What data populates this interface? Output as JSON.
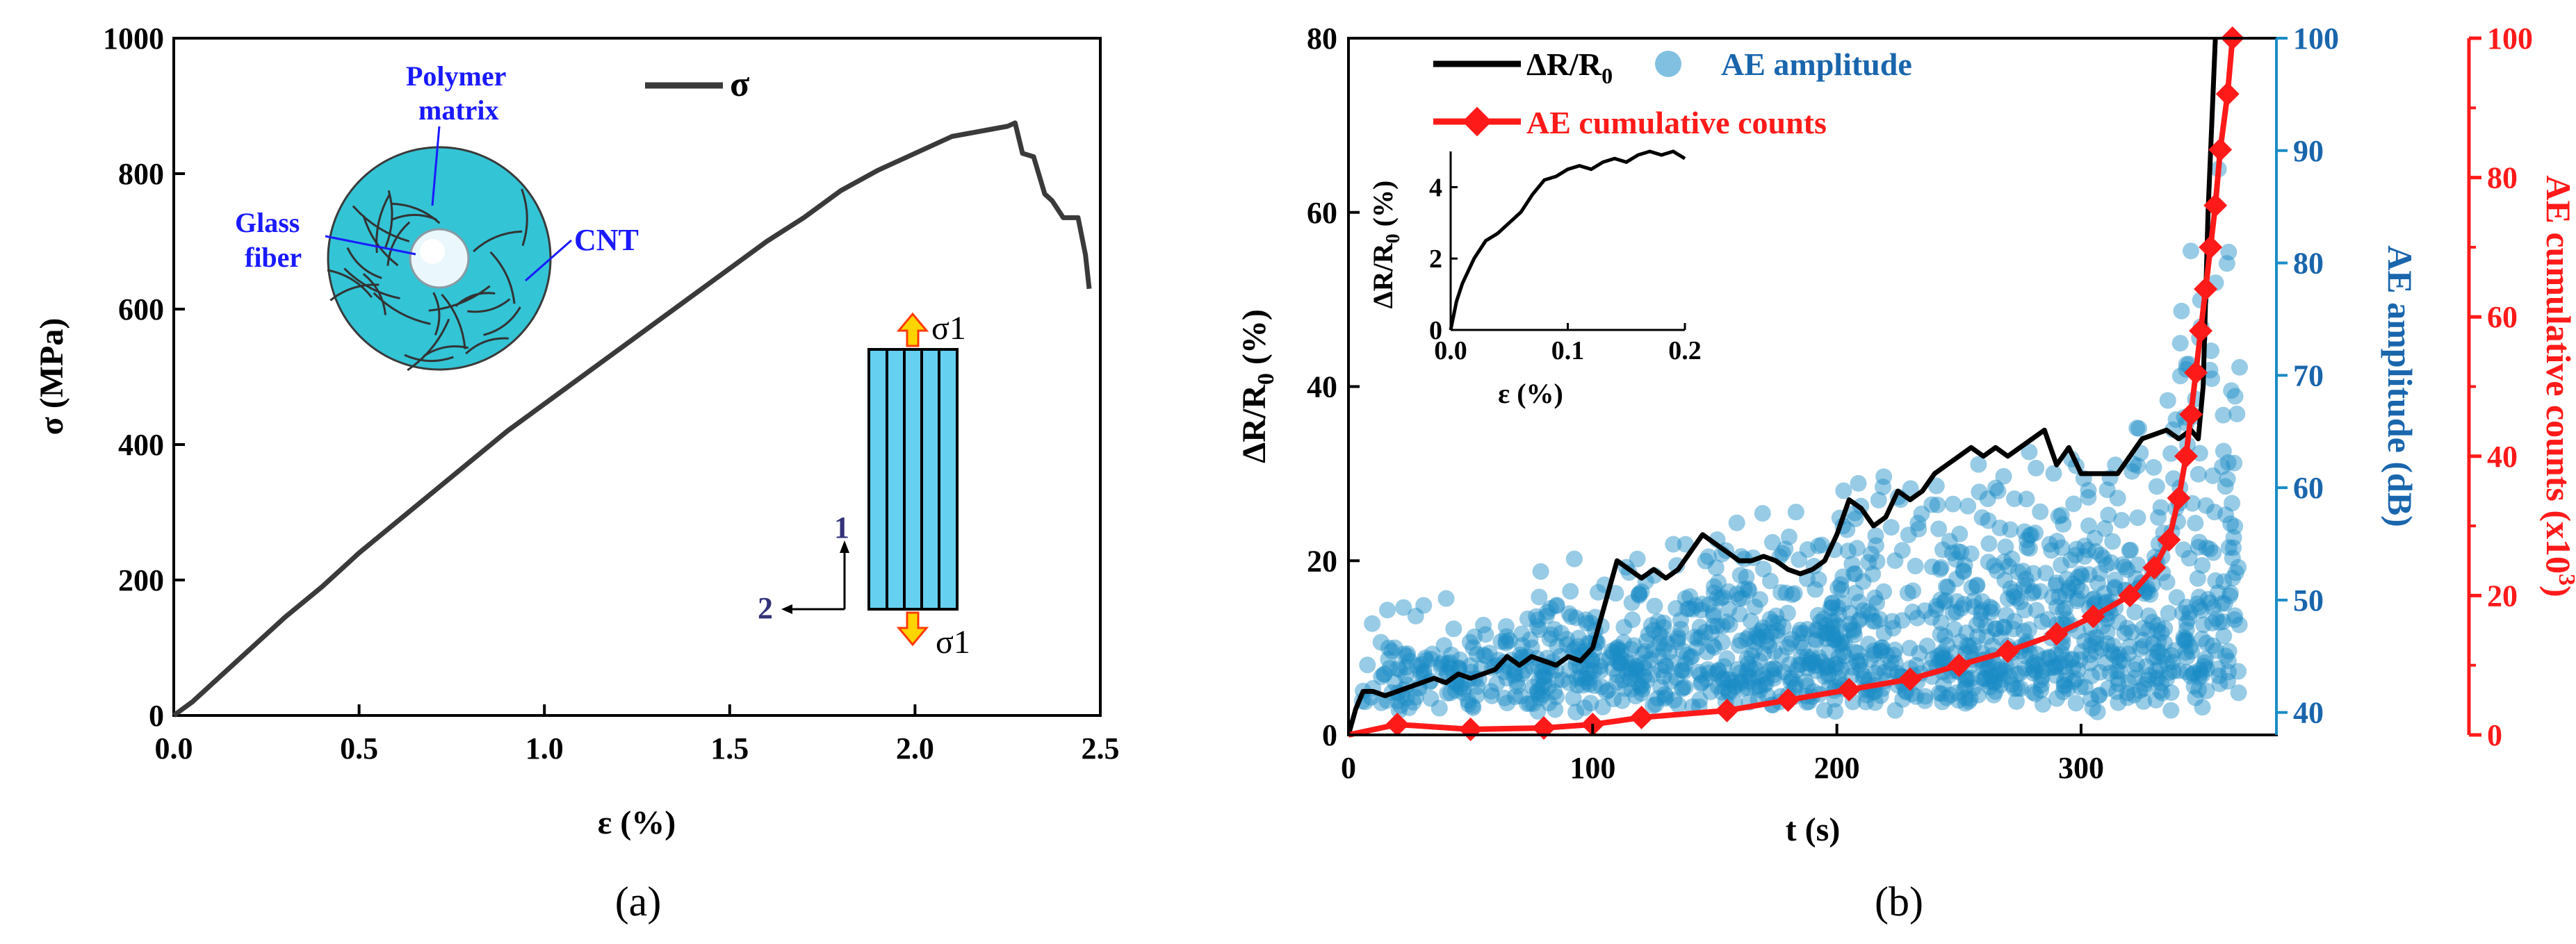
{
  "colors": {
    "stress": "#3a3a3a",
    "resistance": "#000000",
    "ae_amplitude": "#1a8cc6",
    "ae_counts": "#ff1a1a",
    "fiber_fill": "#33c4d6",
    "rod_fill": "#66d0f0",
    "arrow_fill": "#ffd400",
    "arrow_edge": "#ff3b00",
    "schematic_label": "#1a1aff",
    "axis_label_blue": "#1a66ad",
    "coord_label": "#33337a"
  },
  "panels": {
    "a": "(a)",
    "b": "(b)"
  },
  "chart_data": [
    {
      "id": "a",
      "type": "line",
      "xlabel": "ε (%)",
      "ylabel": "σ (MPa)",
      "xlim": [
        0,
        2.5
      ],
      "ylim": [
        0,
        1000
      ],
      "xticks": [
        0,
        0.5,
        1,
        1.5,
        2,
        2.5
      ],
      "yticks": [
        0,
        200,
        400,
        600,
        800,
        1000
      ],
      "xtick_labels": [
        "0.0",
        "0.5",
        "1.0",
        "1.5",
        "2.0",
        "2.5"
      ],
      "ytick_labels": [
        "0",
        "200",
        "400",
        "600",
        "800",
        "1000"
      ],
      "legend": {
        "position": "top-center",
        "entries": [
          "σ"
        ]
      },
      "series": [
        {
          "name": "σ",
          "x": [
            0,
            0.05,
            0.1,
            0.2,
            0.3,
            0.4,
            0.5,
            0.6,
            0.7,
            0.8,
            0.9,
            1.0,
            1.1,
            1.2,
            1.3,
            1.4,
            1.5,
            1.6,
            1.7,
            1.8,
            1.9,
            2.0,
            2.1,
            2.15,
            2.2,
            2.25,
            2.27,
            2.29,
            2.32,
            2.35,
            2.37,
            2.4,
            2.44,
            2.46,
            2.47
          ],
          "y": [
            0,
            20,
            45,
            95,
            145,
            190,
            240,
            285,
            330,
            375,
            420,
            460,
            500,
            540,
            580,
            620,
            660,
            700,
            735,
            775,
            805,
            830,
            855,
            860,
            865,
            870,
            875,
            830,
            825,
            770,
            760,
            735,
            735,
            680,
            630
          ]
        }
      ],
      "annotations": {
        "polymer_matrix": [
          "Polymer",
          "matrix"
        ],
        "glass_fiber": [
          "Glass",
          "fiber"
        ],
        "cnt": "CNT",
        "sigma1_top": "σ1",
        "sigma1_bottom": "σ1",
        "axis1": "1",
        "axis2": "2"
      }
    },
    {
      "id": "b",
      "type": "line",
      "xlabel": "t (s)",
      "ylabel": "ΔR/R0 (%)",
      "ylabel_right1": "AE amplitude (dB)",
      "ylabel_right2": "AE cumulative counts (x10³)",
      "xlim": [
        0,
        380
      ],
      "ylim": [
        0,
        80
      ],
      "ylim_right1": [
        38,
        100
      ],
      "ylim_right2": [
        0,
        100
      ],
      "xticks": [
        0,
        100,
        200,
        300
      ],
      "yticks": [
        0,
        20,
        40,
        60,
        80
      ],
      "yticks_right1": [
        40,
        50,
        60,
        70,
        80,
        90,
        100
      ],
      "yticks_right2": [
        0,
        20,
        40,
        60,
        80,
        100
      ],
      "legend": {
        "position": "top",
        "entries": [
          "ΔR/R0",
          "AE amplitude",
          "AE cumulative counts"
        ]
      },
      "series": [
        {
          "name": "ΔR/R0",
          "axis": "left",
          "x": [
            0,
            3,
            6,
            10,
            15,
            20,
            25,
            30,
            35,
            40,
            45,
            50,
            55,
            60,
            65,
            70,
            75,
            80,
            85,
            90,
            95,
            100,
            105,
            110,
            115,
            120,
            125,
            130,
            135,
            140,
            145,
            150,
            155,
            160,
            165,
            170,
            175,
            180,
            185,
            190,
            195,
            200,
            205,
            210,
            215,
            220,
            225,
            230,
            235,
            240,
            245,
            250,
            255,
            260,
            265,
            270,
            275,
            280,
            285,
            290,
            295,
            300,
            305,
            310,
            315,
            320,
            325,
            330,
            335,
            340,
            345,
            348,
            350,
            352,
            355
          ],
          "y": [
            0,
            3,
            5,
            5,
            4.5,
            5,
            5.5,
            6,
            6.5,
            6,
            7,
            6.5,
            7,
            7.5,
            9,
            8,
            9,
            8.5,
            8,
            9,
            8.5,
            10,
            15,
            20,
            19,
            18,
            19,
            18,
            19,
            21,
            23,
            22,
            21,
            20,
            20,
            20.5,
            20,
            19,
            18.5,
            19,
            20,
            23,
            27,
            26,
            24,
            25,
            28,
            27,
            28,
            30,
            31,
            32,
            33,
            32,
            33,
            32,
            33,
            34,
            35,
            31,
            33,
            30,
            30,
            30,
            30,
            32,
            34,
            34.5,
            35,
            34,
            35,
            34,
            40,
            60,
            80
          ]
        },
        {
          "name": "AE cumulative counts",
          "axis": "right2",
          "x": [
            0,
            20,
            50,
            80,
            100,
            120,
            155,
            180,
            205,
            230,
            250,
            270,
            290,
            305,
            320,
            330,
            336,
            340,
            343,
            345,
            347,
            349,
            351,
            353,
            355,
            357,
            360,
            362
          ],
          "y": [
            0,
            1.5,
            0.8,
            1,
            1.5,
            2.5,
            3.5,
            5,
            6.5,
            8,
            10,
            12,
            14.5,
            17,
            20,
            24,
            28,
            34,
            40,
            46,
            52,
            58,
            64,
            70,
            76,
            84,
            92,
            100
          ]
        }
      ],
      "inset": {
        "type": "line",
        "xlabel": "ε (%)",
        "ylabel": "ΔR/R0 (%)",
        "xlim": [
          0,
          0.2
        ],
        "ylim": [
          0,
          5
        ],
        "xticks": [
          0,
          0.1,
          0.2
        ],
        "xtick_labels": [
          "0.0",
          "0.1",
          "0.2"
        ],
        "yticks": [
          0,
          2,
          4
        ],
        "x": [
          0,
          0.005,
          0.01,
          0.02,
          0.03,
          0.04,
          0.05,
          0.06,
          0.07,
          0.08,
          0.09,
          0.1,
          0.11,
          0.12,
          0.13,
          0.14,
          0.15,
          0.16,
          0.17,
          0.18,
          0.19,
          0.2
        ],
        "y": [
          0,
          0.8,
          1.3,
          2.0,
          2.5,
          2.7,
          3.0,
          3.3,
          3.8,
          4.2,
          4.3,
          4.5,
          4.6,
          4.5,
          4.7,
          4.8,
          4.7,
          4.9,
          5.0,
          4.9,
          5.0,
          4.8
        ]
      }
    }
  ]
}
